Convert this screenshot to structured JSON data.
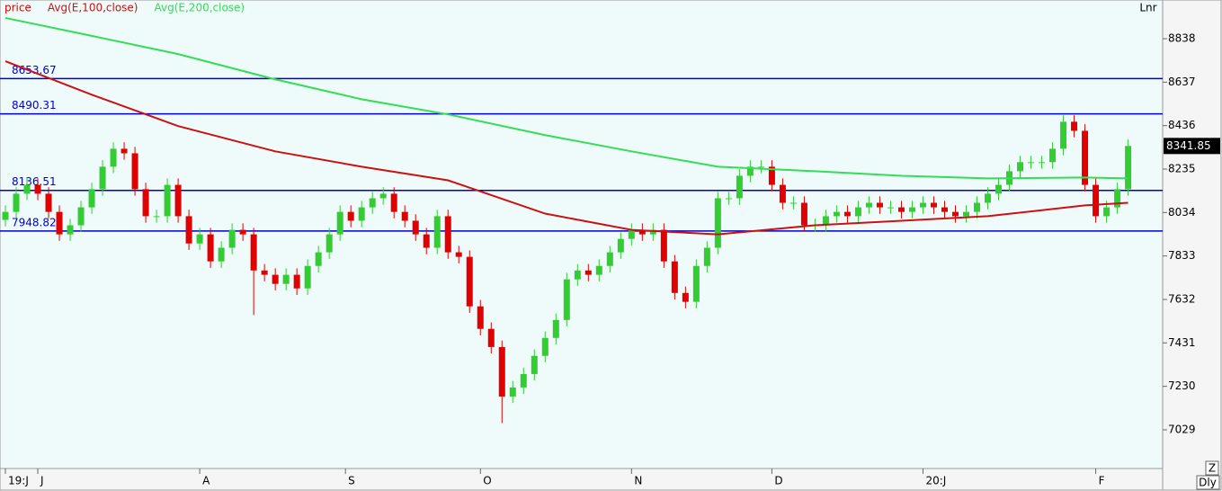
{
  "chart_data": {
    "type": "candlestick",
    "scale_mode": "Lnr",
    "controls": [
      "Z",
      "Dly"
    ],
    "ylim": [
      6850,
      9017
    ],
    "yticks": [
      7029,
      7230,
      7431,
      7632,
      7833,
      8034,
      8235,
      8436,
      8637,
      8838
    ],
    "xlim": [
      -0.5,
      107.2
    ],
    "xticks": [
      {
        "value": 0,
        "label": "19:J"
      },
      {
        "value": 3,
        "label": "J"
      },
      {
        "value": 18,
        "label": "A"
      },
      {
        "value": 31.5,
        "label": "S"
      },
      {
        "value": 44,
        "label": "O"
      },
      {
        "value": 58,
        "label": "N"
      },
      {
        "value": 71,
        "label": "D"
      },
      {
        "value": 85,
        "label": "20:J"
      },
      {
        "value": 101,
        "label": "F"
      }
    ],
    "levels": {
      "color": "#0000cc",
      "values": [
        8653.67,
        8490.31,
        8136.51,
        7948.82
      ]
    },
    "series": [
      {
        "name": "price",
        "color": "#e00000",
        "up_color": "#33cc33",
        "open": [
          8000,
          8037,
          8121,
          8162,
          8121,
          8037,
          7933,
          7975,
          8058,
          8142,
          8246,
          8329,
          8308,
          8142,
          8017,
          8017,
          8162,
          8017,
          7891,
          7933,
          7808,
          7871,
          7954,
          7933,
          7766,
          7746,
          7704,
          7746,
          7683,
          7787,
          7850,
          7933,
          8037,
          7996,
          8058,
          8100,
          8121,
          8037,
          7996,
          7933,
          7871,
          8017,
          7850,
          7829,
          7600,
          7496,
          7412,
          7183,
          7225,
          7287,
          7371,
          7454,
          7537,
          7725,
          7766,
          7746,
          7787,
          7850,
          7912,
          7954,
          7933,
          7954,
          7808,
          7662,
          7621,
          7787,
          7871,
          8100,
          8100,
          8204,
          8246,
          8246,
          8162,
          8079,
          8079,
          7975,
          7975,
          8017,
          8037,
          8017,
          8058,
          8079,
          8058,
          8058,
          8037,
          8058,
          8079,
          8058,
          8037,
          8017,
          8037,
          8079,
          8121,
          8162,
          8225,
          8267,
          8267,
          8267,
          8329,
          8454,
          8412,
          8162,
          8017,
          8058,
          8142
        ],
        "high": [
          8067,
          8151,
          8192,
          8192,
          8151,
          8067,
          8005,
          8088,
          8172,
          8276,
          8359,
          8359,
          8338,
          8172,
          8047,
          8192,
          8192,
          8047,
          7963,
          7963,
          7901,
          7984,
          7984,
          7963,
          7796,
          7776,
          7776,
          7776,
          7817,
          7880,
          7963,
          8067,
          8067,
          8088,
          8130,
          8151,
          8151,
          8067,
          8026,
          7963,
          8047,
          8047,
          7880,
          7859,
          7630,
          7526,
          7442,
          7255,
          7317,
          7401,
          7484,
          7567,
          7755,
          7796,
          7796,
          7817,
          7880,
          7942,
          7984,
          7984,
          7984,
          7984,
          7838,
          7692,
          7817,
          7901,
          8130,
          8130,
          8234,
          8276,
          8276,
          8276,
          8192,
          8109,
          8109,
          8005,
          8047,
          8067,
          8067,
          8088,
          8109,
          8109,
          8088,
          8088,
          8088,
          8109,
          8109,
          8088,
          8067,
          8067,
          8109,
          8151,
          8192,
          8255,
          8297,
          8297,
          8297,
          8359,
          8484,
          8484,
          8442,
          8192,
          8088,
          8172,
          8372
        ],
        "low": [
          7970,
          8007,
          8091,
          8091,
          8007,
          7903,
          7903,
          7945,
          8028,
          8112,
          8216,
          8278,
          8112,
          7987,
          7987,
          7987,
          7987,
          7861,
          7861,
          7778,
          7778,
          7841,
          7903,
          7560,
          7716,
          7674,
          7674,
          7653,
          7653,
          7757,
          7820,
          7903,
          7966,
          7966,
          8028,
          8070,
          8007,
          7966,
          7903,
          7841,
          7841,
          7820,
          7799,
          7570,
          7466,
          7382,
          7060,
          7153,
          7195,
          7257,
          7341,
          7424,
          7507,
          7695,
          7716,
          7716,
          7757,
          7820,
          7882,
          7903,
          7903,
          7778,
          7632,
          7591,
          7591,
          7757,
          7841,
          8070,
          8070,
          8174,
          8216,
          8132,
          8049,
          8049,
          7945,
          7945,
          7945,
          7987,
          7987,
          7987,
          8028,
          8028,
          8028,
          8007,
          8007,
          8028,
          8028,
          8007,
          7987,
          7987,
          8007,
          8049,
          8091,
          8132,
          8195,
          8237,
          8237,
          8237,
          8299,
          8382,
          8132,
          7987,
          7987,
          8028,
          8112
        ],
        "close": [
          8037,
          8121,
          8162,
          8121,
          8037,
          7933,
          7975,
          8058,
          8142,
          8246,
          8329,
          8308,
          8142,
          8017,
          8017,
          8162,
          8017,
          7891,
          7933,
          7808,
          7871,
          7954,
          7933,
          7766,
          7746,
          7704,
          7746,
          7683,
          7787,
          7850,
          7933,
          8037,
          7996,
          8058,
          8100,
          8121,
          8037,
          7996,
          7933,
          7871,
          8017,
          7850,
          7829,
          7600,
          7496,
          7412,
          7183,
          7225,
          7287,
          7371,
          7454,
          7537,
          7725,
          7766,
          7746,
          7787,
          7850,
          7912,
          7954,
          7933,
          7954,
          7808,
          7662,
          7621,
          7787,
          7871,
          8100,
          8100,
          8204,
          8246,
          8246,
          8162,
          8079,
          8079,
          7975,
          7975,
          8017,
          8037,
          8017,
          8058,
          8079,
          8058,
          8058,
          8037,
          8058,
          8079,
          8058,
          8037,
          8017,
          8037,
          8079,
          8121,
          8162,
          8225,
          8267,
          8267,
          8267,
          8329,
          8454,
          8412,
          8162,
          8017,
          8058,
          8142,
          8341.85
        ]
      },
      {
        "name": "Avg(E,100,close)",
        "color": "#cc1111",
        "x": [
          0,
          8,
          16,
          25,
          33,
          41,
          50,
          58,
          66,
          75,
          83,
          91,
          100,
          104
        ],
        "values": [
          8734,
          8579,
          8434,
          8317,
          8246,
          8183,
          8029,
          7954,
          7933,
          7975,
          7996,
          8017,
          8067,
          8079
        ]
      },
      {
        "name": "Avg(E,200,close)",
        "color": "#33dd55",
        "x": [
          0,
          8,
          16,
          25,
          33,
          41,
          50,
          58,
          66,
          75,
          83,
          91,
          100,
          104
        ],
        "values": [
          8934,
          8851,
          8767,
          8650,
          8558,
          8488,
          8392,
          8317,
          8246,
          8225,
          8204,
          8192,
          8196,
          8192
        ]
      }
    ]
  }
}
